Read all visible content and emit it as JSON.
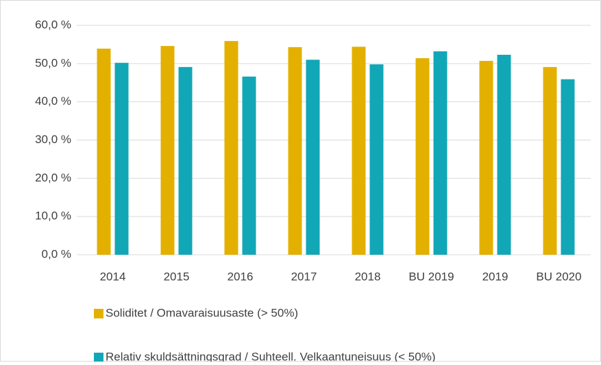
{
  "chart_data": {
    "type": "bar",
    "categories": [
      "2014",
      "2015",
      "2016",
      "2017",
      "2018",
      "BU 2019",
      "2019",
      "BU 2020"
    ],
    "series": [
      {
        "name": "Soliditet / Omavaraisuusaste (> 50%)",
        "color": "#e3b000",
        "values": [
          53.9,
          54.6,
          55.9,
          54.3,
          54.4,
          51.4,
          50.7,
          49.1
        ]
      },
      {
        "name": "Relativ skuldsättningsgrad / Suhteell. Velkaantuneisuus (< 50%)",
        "color": "#12a7b7",
        "values": [
          50.2,
          49.1,
          46.6,
          51.0,
          49.8,
          53.2,
          52.3,
          45.9
        ]
      }
    ],
    "ylim": [
      0,
      60
    ],
    "yticks": [
      {
        "value": 0,
        "label": "0,0 %"
      },
      {
        "value": 10,
        "label": "10,0 %"
      },
      {
        "value": 20,
        "label": "20,0 %"
      },
      {
        "value": 30,
        "label": "30,0 %"
      },
      {
        "value": 40,
        "label": "40,0 %"
      },
      {
        "value": 50,
        "label": "50,0 %"
      },
      {
        "value": 60,
        "label": "60,0 %"
      }
    ],
    "grid": true,
    "legend": "bottom"
  }
}
